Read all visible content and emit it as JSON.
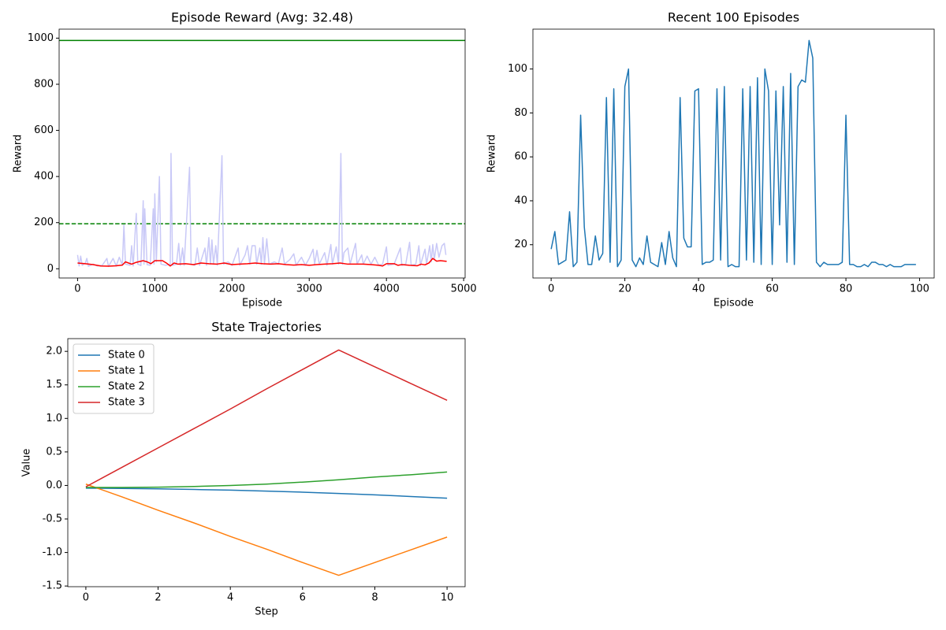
{
  "chart_data": [
    {
      "type": "line",
      "title": "Episode Reward (Avg: 32.48)",
      "xlabel": "Episode",
      "ylabel": "Reward",
      "xlim": [
        -239,
        5019
      ],
      "ylim": [
        -40,
        1039
      ],
      "xticks": [
        0,
        1000,
        2000,
        3000,
        4000,
        5000
      ],
      "yticks": [
        0,
        200,
        400,
        600,
        800,
        1000
      ],
      "hlines": [
        {
          "value": 990,
          "color": "green",
          "style": "solid"
        },
        {
          "value": 195,
          "color": "green",
          "style": "dashed"
        }
      ],
      "series": [
        {
          "color": "#c9c9f7",
          "x": [
            0,
            20,
            40,
            60,
            100,
            120,
            140,
            200,
            260,
            320,
            380,
            400,
            460,
            500,
            540,
            580,
            600,
            620,
            680,
            700,
            720,
            760,
            780,
            820,
            850,
            860,
            870,
            900,
            940,
            980,
            990,
            1000,
            1020,
            1060,
            1080,
            1140,
            1200,
            1210,
            1230,
            1280,
            1310,
            1330,
            1360,
            1380,
            1450,
            1470,
            1520,
            1550,
            1580,
            1650,
            1670,
            1700,
            1720,
            1740,
            1760,
            1790,
            1810,
            1870,
            1890,
            1950,
            2000,
            2080,
            2100,
            2170,
            2200,
            2230,
            2260,
            2300,
            2320,
            2360,
            2380,
            2400,
            2420,
            2450,
            2480,
            2550,
            2600,
            2650,
            2680,
            2750,
            2800,
            2830,
            2900,
            2950,
            3000,
            3050,
            3070,
            3100,
            3130,
            3200,
            3230,
            3280,
            3300,
            3350,
            3380,
            3410,
            3430,
            3450,
            3500,
            3530,
            3600,
            3620,
            3680,
            3700,
            3750,
            3800,
            3850,
            3900,
            3950,
            4000,
            4020,
            4100,
            4180,
            4200,
            4250,
            4300,
            4320,
            4380,
            4420,
            4440,
            4500,
            4520,
            4560,
            4580,
            4600,
            4620,
            4650,
            4680,
            4720,
            4750,
            4770
          ],
          "values": [
            60,
            12,
            55,
            15,
            25,
            45,
            11,
            20,
            12,
            15,
            45,
            10,
            45,
            12,
            50,
            15,
            190,
            20,
            15,
            100,
            12,
            240,
            20,
            14,
            295,
            20,
            260,
            18,
            15,
            260,
            20,
            325,
            30,
            400,
            20,
            15,
            20,
            500,
            15,
            20,
            110,
            15,
            90,
            15,
            440,
            20,
            15,
            90,
            15,
            90,
            15,
            135,
            20,
            125,
            20,
            100,
            15,
            490,
            20,
            30,
            15,
            90,
            15,
            60,
            100,
            20,
            100,
            100,
            20,
            90,
            20,
            135,
            20,
            130,
            20,
            30,
            20,
            90,
            20,
            40,
            65,
            15,
            50,
            15,
            45,
            85,
            20,
            80,
            20,
            70,
            15,
            105,
            20,
            95,
            20,
            500,
            20,
            70,
            90,
            20,
            110,
            20,
            60,
            20,
            55,
            20,
            50,
            15,
            20,
            95,
            15,
            20,
            90,
            15,
            20,
            115,
            15,
            20,
            100,
            15,
            85,
            20,
            100,
            30,
            105,
            40,
            110,
            50,
            100,
            110,
            60
          ]
        },
        {
          "color": "#ff0000",
          "x": [
            0,
            100,
            200,
            300,
            400,
            500,
            580,
            620,
            700,
            760,
            850,
            900,
            950,
            1000,
            1100,
            1150,
            1200,
            1250,
            1300,
            1400,
            1500,
            1600,
            1700,
            1800,
            1900,
            2000,
            2100,
            2200,
            2300,
            2400,
            2500,
            2600,
            2700,
            2800,
            2900,
            3000,
            3100,
            3200,
            3300,
            3400,
            3500,
            3600,
            3700,
            3800,
            3900,
            3950,
            4000,
            4100,
            4150,
            4200,
            4300,
            4400,
            4450,
            4500,
            4550,
            4600,
            4650,
            4700,
            4780
          ],
          "values": [
            25,
            22,
            18,
            12,
            11,
            13,
            16,
            30,
            20,
            28,
            35,
            30,
            22,
            35,
            35,
            25,
            12,
            25,
            20,
            22,
            18,
            25,
            22,
            20,
            25,
            18,
            20,
            22,
            25,
            22,
            20,
            22,
            18,
            16,
            18,
            15,
            18,
            20,
            22,
            25,
            20,
            20,
            20,
            18,
            15,
            12,
            22,
            22,
            15,
            18,
            15,
            13,
            20,
            17,
            25,
            45,
            33,
            35,
            32
          ]
        }
      ]
    },
    {
      "type": "line",
      "title": "Recent 100 Episodes",
      "xlabel": "Episode",
      "ylabel": "Reward",
      "xlim": [
        -4.95,
        103.95
      ],
      "ylim": [
        4.85,
        118.15
      ],
      "xticks": [
        0,
        20,
        40,
        60,
        80,
        100
      ],
      "yticks": [
        20,
        40,
        60,
        80,
        100
      ],
      "x": [
        0,
        1,
        2,
        3,
        4,
        5,
        6,
        7,
        8,
        9,
        10,
        11,
        12,
        13,
        14,
        15,
        16,
        17,
        18,
        19,
        20,
        21,
        22,
        23,
        24,
        25,
        26,
        27,
        28,
        29,
        30,
        31,
        32,
        33,
        34,
        35,
        36,
        37,
        38,
        39,
        40,
        41,
        42,
        43,
        44,
        45,
        46,
        47,
        48,
        49,
        50,
        51,
        52,
        53,
        54,
        55,
        56,
        57,
        58,
        59,
        60,
        61,
        62,
        63,
        64,
        65,
        66,
        67,
        68,
        69,
        70,
        71,
        72,
        73,
        74,
        75,
        76,
        77,
        78,
        79,
        80,
        81,
        82,
        83,
        84,
        85,
        86,
        87,
        88,
        89,
        90,
        91,
        92,
        93,
        94,
        95,
        96,
        97,
        98,
        99
      ],
      "series": [
        {
          "color": "#1f77b4",
          "values": [
            18,
            26,
            11,
            12,
            13,
            35,
            10,
            12,
            79,
            28,
            11,
            11,
            24,
            13,
            16,
            87,
            12,
            91,
            10,
            13,
            92,
            100,
            13,
            10,
            14,
            11,
            24,
            12,
            11,
            10,
            21,
            11,
            26,
            14,
            10,
            87,
            23,
            19,
            19,
            90,
            91,
            11,
            12,
            12,
            13,
            91,
            13,
            92,
            10,
            11,
            10,
            10,
            91,
            13,
            92,
            12,
            96,
            11,
            100,
            90,
            11,
            90,
            29,
            92,
            12,
            98,
            11,
            92,
            95,
            94,
            113,
            105,
            12,
            10,
            12,
            11,
            11,
            11,
            11,
            12,
            79,
            11,
            11,
            10,
            10,
            11,
            10,
            12,
            12,
            11,
            11,
            10,
            11,
            10,
            10,
            10,
            11,
            11,
            11,
            11
          ]
        }
      ]
    },
    {
      "type": "line",
      "title": "State Trajectories",
      "xlabel": "Step",
      "ylabel": "Value",
      "legend": "upper left",
      "xlim": [
        -0.5,
        10.5
      ],
      "ylim": [
        -1.51,
        2.19
      ],
      "xticks": [
        0,
        2,
        4,
        6,
        8,
        10
      ],
      "yticks": [
        -1.5,
        {
          "value": -1,
          "label": "-1.0"
        },
        -0.5,
        {
          "value": 0,
          "label": "0.0"
        },
        0.5,
        {
          "value": 1,
          "label": "1.0"
        },
        1.5,
        {
          "value": 2,
          "label": "2.0"
        }
      ],
      "x": [
        0,
        1,
        2,
        3,
        4,
        5,
        6,
        7,
        8,
        9,
        10
      ],
      "series": [
        {
          "name": "State 0",
          "color": "#1f77b4",
          "values": [
            -0.04,
            -0.045,
            -0.05,
            -0.06,
            -0.07,
            -0.085,
            -0.1,
            -0.12,
            -0.14,
            -0.165,
            -0.19
          ]
        },
        {
          "name": "State 1",
          "color": "#ff7f0e",
          "values": [
            0.02,
            -0.17,
            -0.37,
            -0.56,
            -0.76,
            -0.95,
            -1.15,
            -1.34,
            -1.15,
            -0.96,
            -0.77
          ]
        },
        {
          "name": "State 2",
          "color": "#2ca02c",
          "values": [
            -0.03,
            -0.03,
            -0.025,
            -0.015,
            0,
            0.02,
            0.05,
            0.085,
            0.125,
            0.16,
            0.2
          ]
        },
        {
          "name": "State 3",
          "color": "#d62728",
          "values": [
            -0.02,
            0.27,
            0.56,
            0.85,
            1.14,
            1.44,
            1.73,
            2.02,
            1.77,
            1.52,
            1.27
          ]
        }
      ]
    }
  ]
}
